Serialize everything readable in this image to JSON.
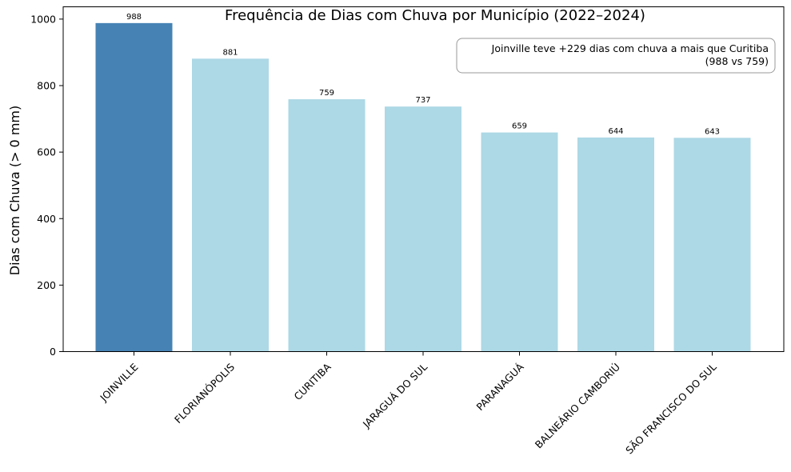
{
  "chart_data": {
    "type": "bar",
    "title": "Frequência de Dias com Chuva por Município (2022–2024)",
    "xlabel": "",
    "ylabel": "Dias com Chuva (> 0 mm)",
    "categories": [
      "JOINVILLE",
      "FLORIANÓPOLIS",
      "CURITIBA",
      "JARAGUÁ DO SUL",
      "PARANAGUÁ",
      "BALNEÁRIO CAMBORIÚ",
      "SÃO FRANCISCO DO SUL"
    ],
    "values": [
      988,
      881,
      759,
      737,
      659,
      644,
      643
    ],
    "data_labels": [
      "988",
      "881",
      "759",
      "737",
      "659",
      "644",
      "643"
    ],
    "ylim": [
      0,
      1037
    ],
    "yticks": [
      0,
      200,
      400,
      600,
      800,
      1000
    ],
    "ytick_labels": [
      "0",
      "200",
      "400",
      "600",
      "800",
      "1000"
    ],
    "colors": {
      "highlight": "#4682b4",
      "default": "#add8e6"
    },
    "highlight_category": "JOINVILLE",
    "grid": false,
    "annotation": {
      "line1": "Joinville teve +229 dias com chuva a mais que Curitiba",
      "line2": "(988 vs 759)",
      "placement": "top-right"
    }
  }
}
